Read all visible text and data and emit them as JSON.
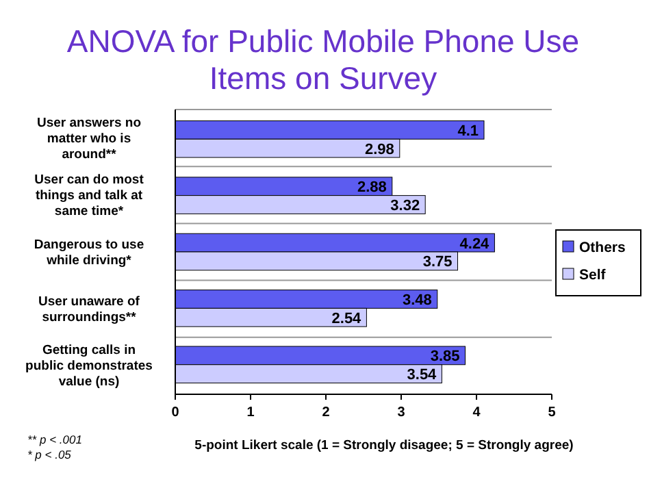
{
  "chart_data": {
    "type": "bar",
    "orientation": "horizontal",
    "title": "ANOVA for Public Mobile Phone Use Items on Survey",
    "xlabel": "5-point Likert scale (1 = Strongly disagee; 5 = Strongly agree)",
    "categories": [
      "User answers no matter who is around**",
      "User can do most things and talk at same time*",
      "Dangerous to use while driving*",
      "User unaware of surroundings**",
      "Getting calls in public demonstrates value (ns)"
    ],
    "series": [
      {
        "name": "Others",
        "color": "#5c5cf0",
        "values": [
          4.1,
          2.88,
          4.24,
          3.48,
          3.85
        ]
      },
      {
        "name": "Self",
        "color": "#ccccff",
        "values": [
          2.98,
          3.32,
          3.75,
          2.54,
          3.54
        ]
      }
    ],
    "xlim": [
      0,
      5
    ],
    "xticks": [
      0,
      1,
      2,
      3,
      4,
      5
    ],
    "grid": "y",
    "legend": "right",
    "data_labels": true,
    "annotations": [
      "** p < .001",
      "* p < .05"
    ]
  }
}
